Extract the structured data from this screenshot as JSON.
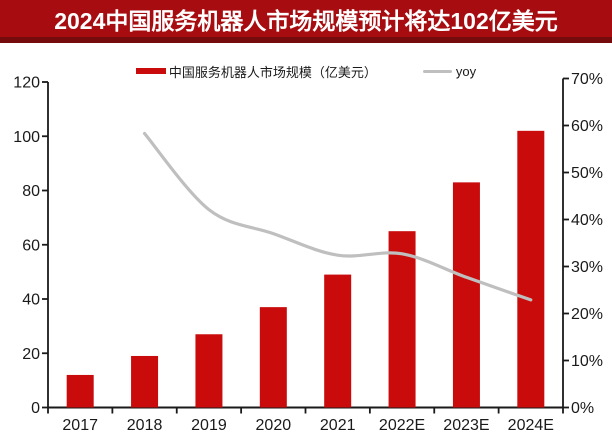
{
  "title": "2024中国服务机器人市场规模预计将达102亿美元",
  "legend": {
    "bars_label": "中国服务机器人市场规模（亿美元）",
    "line_label": "yoy"
  },
  "colors": {
    "bar": "#C90B0B",
    "line": "#BFBFBF",
    "title_bg": "#A60C10",
    "title_bg_dark": "#750B0D",
    "axis": "#1A1A1A",
    "text": "#1A1A1A"
  },
  "chart_data": {
    "type": "bar",
    "subtype": "bar-line-combo",
    "categories": [
      "2017",
      "2018",
      "2019",
      "2020",
      "2021",
      "2022E",
      "2023E",
      "2024E"
    ],
    "series": [
      {
        "name": "中国服务机器人市场规模（亿美元）",
        "type": "bar",
        "axis": "left",
        "values": [
          12,
          19,
          27,
          37,
          49,
          65,
          83,
          102
        ]
      },
      {
        "name": "yoy",
        "type": "line",
        "axis": "right",
        "unit": "%",
        "values": [
          null,
          58.3,
          42.1,
          37.0,
          32.4,
          32.7,
          27.7,
          22.9
        ]
      }
    ],
    "left_axis": {
      "min": 0,
      "max": 120,
      "step": 20,
      "ticks": [
        "0",
        "20",
        "40",
        "60",
        "80",
        "100",
        "120"
      ]
    },
    "right_axis": {
      "min": 0,
      "max": 70,
      "step": 10,
      "ticks": [
        "0%",
        "10%",
        "20%",
        "30%",
        "40%",
        "50%",
        "60%",
        "70%"
      ]
    },
    "grid": false,
    "legend_position": "top"
  }
}
